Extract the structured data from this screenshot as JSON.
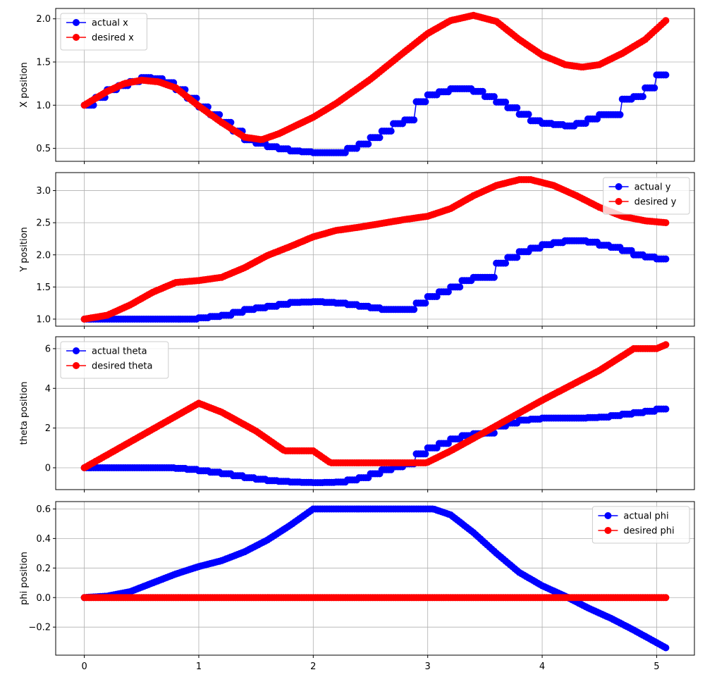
{
  "chart_data": [
    {
      "type": "line",
      "ylabel": "X position",
      "xlim": [
        -0.25,
        5.33
      ],
      "ylim": [
        0.35,
        2.12
      ],
      "xticks": [
        "0",
        "1",
        "2",
        "3",
        "4",
        "5"
      ],
      "yticks": [
        "0.5",
        "1.0",
        "1.5",
        "2.0"
      ],
      "grid": true,
      "legend_loc": "top-left",
      "series": [
        {
          "name": "actual x",
          "color": "#0000ff",
          "step": 0.1,
          "points": [
            [
              0,
              1.0
            ],
            [
              0.2,
              1.18
            ],
            [
              0.5,
              1.32
            ],
            [
              0.65,
              1.3
            ],
            [
              0.8,
              1.18
            ],
            [
              1.0,
              0.98
            ],
            [
              1.2,
              0.8
            ],
            [
              1.4,
              0.6
            ],
            [
              1.6,
              0.52
            ],
            [
              1.8,
              0.47
            ],
            [
              2.0,
              0.45
            ],
            [
              2.2,
              0.45
            ],
            [
              2.4,
              0.55
            ],
            [
              2.6,
              0.7
            ],
            [
              2.75,
              0.83
            ],
            [
              2.85,
              0.83
            ],
            [
              2.9,
              1.04
            ],
            [
              3.0,
              1.12
            ],
            [
              3.2,
              1.19
            ],
            [
              3.35,
              1.19
            ],
            [
              3.5,
              1.1
            ],
            [
              3.7,
              0.97
            ],
            [
              3.9,
              0.82
            ],
            [
              4.0,
              0.79
            ],
            [
              4.2,
              0.76
            ],
            [
              4.3,
              0.79
            ],
            [
              4.4,
              0.84
            ],
            [
              4.5,
              0.89
            ],
            [
              4.65,
              0.89
            ],
            [
              4.7,
              1.07
            ],
            [
              4.8,
              1.1
            ],
            [
              4.9,
              1.2
            ],
            [
              5.0,
              1.35
            ],
            [
              5.08,
              1.47
            ]
          ]
        },
        {
          "name": "desired x",
          "color": "#ff0000",
          "step": 0,
          "points": [
            [
              0,
              1.0
            ],
            [
              0.2,
              1.16
            ],
            [
              0.35,
              1.25
            ],
            [
              0.5,
              1.29
            ],
            [
              0.65,
              1.27
            ],
            [
              0.8,
              1.2
            ],
            [
              1.0,
              0.99
            ],
            [
              1.2,
              0.8
            ],
            [
              1.4,
              0.63
            ],
            [
              1.55,
              0.6
            ],
            [
              1.7,
              0.67
            ],
            [
              2.0,
              0.86
            ],
            [
              2.2,
              1.02
            ],
            [
              2.5,
              1.3
            ],
            [
              2.8,
              1.62
            ],
            [
              3.0,
              1.83
            ],
            [
              3.2,
              1.98
            ],
            [
              3.4,
              2.04
            ],
            [
              3.6,
              1.97
            ],
            [
              3.8,
              1.76
            ],
            [
              4.0,
              1.58
            ],
            [
              4.2,
              1.47
            ],
            [
              4.35,
              1.44
            ],
            [
              4.5,
              1.47
            ],
            [
              4.7,
              1.6
            ],
            [
              4.9,
              1.76
            ],
            [
              5.08,
              1.98
            ]
          ]
        }
      ]
    },
    {
      "type": "line",
      "ylabel": "Y position",
      "xlim": [
        -0.25,
        5.33
      ],
      "ylim": [
        0.89,
        3.28
      ],
      "xticks": [
        "0",
        "1",
        "2",
        "3",
        "4",
        "5"
      ],
      "yticks": [
        "1.0",
        "1.5",
        "2.0",
        "2.5",
        "3.0"
      ],
      "grid": true,
      "legend_loc": "top-right",
      "series": [
        {
          "name": "actual y",
          "color": "#0000ff",
          "step": 0.1,
          "points": [
            [
              0,
              1.0
            ],
            [
              0.9,
              1.0
            ],
            [
              1.0,
              1.02
            ],
            [
              1.2,
              1.06
            ],
            [
              1.4,
              1.15
            ],
            [
              1.6,
              1.2
            ],
            [
              1.8,
              1.26
            ],
            [
              2.0,
              1.27
            ],
            [
              2.2,
              1.25
            ],
            [
              2.4,
              1.2
            ],
            [
              2.6,
              1.15
            ],
            [
              2.8,
              1.15
            ],
            [
              2.9,
              1.25
            ],
            [
              3.0,
              1.35
            ],
            [
              3.2,
              1.5
            ],
            [
              3.35,
              1.65
            ],
            [
              3.5,
              1.65
            ],
            [
              3.6,
              1.87
            ],
            [
              3.8,
              2.05
            ],
            [
              4.0,
              2.16
            ],
            [
              4.2,
              2.22
            ],
            [
              4.35,
              2.22
            ],
            [
              4.5,
              2.15
            ],
            [
              4.65,
              2.1
            ],
            [
              4.8,
              2.0
            ],
            [
              5.08,
              1.91
            ]
          ]
        },
        {
          "name": "desired y",
          "color": "#ff0000",
          "step": 0,
          "points": [
            [
              0,
              1.0
            ],
            [
              0.2,
              1.06
            ],
            [
              0.4,
              1.22
            ],
            [
              0.6,
              1.42
            ],
            [
              0.8,
              1.57
            ],
            [
              1.0,
              1.6
            ],
            [
              1.2,
              1.65
            ],
            [
              1.4,
              1.8
            ],
            [
              1.6,
              1.99
            ],
            [
              1.8,
              2.13
            ],
            [
              2.0,
              2.28
            ],
            [
              2.2,
              2.38
            ],
            [
              2.4,
              2.43
            ],
            [
              2.6,
              2.49
            ],
            [
              2.8,
              2.55
            ],
            [
              3.0,
              2.6
            ],
            [
              3.2,
              2.72
            ],
            [
              3.4,
              2.92
            ],
            [
              3.6,
              3.08
            ],
            [
              3.8,
              3.17
            ],
            [
              3.9,
              3.17
            ],
            [
              4.1,
              3.08
            ],
            [
              4.3,
              2.92
            ],
            [
              4.5,
              2.74
            ],
            [
              4.7,
              2.6
            ],
            [
              4.9,
              2.53
            ],
            [
              5.08,
              2.5
            ]
          ]
        }
      ]
    },
    {
      "type": "line",
      "ylabel": "theta position",
      "xlim": [
        -0.25,
        5.33
      ],
      "ylim": [
        -1.1,
        6.6
      ],
      "xticks": [
        "0",
        "1",
        "2",
        "3",
        "4",
        "5"
      ],
      "yticks": [
        "0",
        "2",
        "4",
        "6"
      ],
      "grid": true,
      "legend_loc": "top-left",
      "series": [
        {
          "name": "actual theta",
          "color": "#0000ff",
          "step": 0.1,
          "points": [
            [
              0,
              0
            ],
            [
              0.7,
              0
            ],
            [
              0.85,
              -0.05
            ],
            [
              1.0,
              -0.15
            ],
            [
              1.2,
              -0.3
            ],
            [
              1.4,
              -0.5
            ],
            [
              1.6,
              -0.65
            ],
            [
              1.8,
              -0.72
            ],
            [
              2.0,
              -0.75
            ],
            [
              2.2,
              -0.72
            ],
            [
              2.4,
              -0.5
            ],
            [
              2.6,
              -0.1
            ],
            [
              2.8,
              0.2
            ],
            [
              2.85,
              0.2
            ],
            [
              2.9,
              0.7
            ],
            [
              3.0,
              1.0
            ],
            [
              3.2,
              1.45
            ],
            [
              3.35,
              1.7
            ],
            [
              3.5,
              1.75
            ],
            [
              3.6,
              2.1
            ],
            [
              3.8,
              2.4
            ],
            [
              4.0,
              2.5
            ],
            [
              4.3,
              2.5
            ],
            [
              4.5,
              2.55
            ],
            [
              4.7,
              2.7
            ],
            [
              4.9,
              2.85
            ],
            [
              5.08,
              3.05
            ]
          ]
        },
        {
          "name": "desired theta",
          "color": "#ff0000",
          "step": 0,
          "points": [
            [
              0,
              0
            ],
            [
              1.0,
              3.25
            ],
            [
              1.2,
              2.8
            ],
            [
              1.5,
              1.85
            ],
            [
              1.75,
              0.85
            ],
            [
              2.0,
              0.85
            ],
            [
              2.15,
              0.25
            ],
            [
              2.99,
              0.25
            ],
            [
              3.2,
              0.85
            ],
            [
              3.5,
              1.8
            ],
            [
              4.0,
              3.4
            ],
            [
              4.5,
              4.9
            ],
            [
              4.8,
              6.0
            ],
            [
              5.0,
              6.0
            ],
            [
              5.08,
              6.2
            ]
          ]
        }
      ]
    },
    {
      "type": "line",
      "ylabel": "phi position",
      "xlim": [
        -0.25,
        5.33
      ],
      "ylim": [
        -0.39,
        0.65
      ],
      "xticks": [
        "0",
        "1",
        "2",
        "3",
        "4",
        "5"
      ],
      "yticks": [
        "−0.2",
        "0.0",
        "0.2",
        "0.4",
        "0.6"
      ],
      "grid": true,
      "legend_loc": "top-right",
      "series": [
        {
          "name": "actual phi",
          "color": "#0000ff",
          "step": 0,
          "points": [
            [
              0,
              0
            ],
            [
              0.2,
              0.01
            ],
            [
              0.4,
              0.04
            ],
            [
              0.6,
              0.1
            ],
            [
              0.8,
              0.16
            ],
            [
              1.0,
              0.21
            ],
            [
              1.2,
              0.25
            ],
            [
              1.4,
              0.31
            ],
            [
              1.6,
              0.39
            ],
            [
              1.8,
              0.49
            ],
            [
              2.0,
              0.6
            ],
            [
              3.05,
              0.6
            ],
            [
              3.2,
              0.56
            ],
            [
              3.4,
              0.44
            ],
            [
              3.6,
              0.3
            ],
            [
              3.8,
              0.17
            ],
            [
              4.0,
              0.08
            ],
            [
              4.2,
              0.01
            ],
            [
              4.4,
              -0.07
            ],
            [
              4.6,
              -0.14
            ],
            [
              4.8,
              -0.22
            ],
            [
              5.08,
              -0.34
            ]
          ]
        },
        {
          "name": "desired phi",
          "color": "#ff0000",
          "step": 0,
          "points": [
            [
              0,
              0
            ],
            [
              5.08,
              0
            ]
          ]
        }
      ]
    }
  ]
}
